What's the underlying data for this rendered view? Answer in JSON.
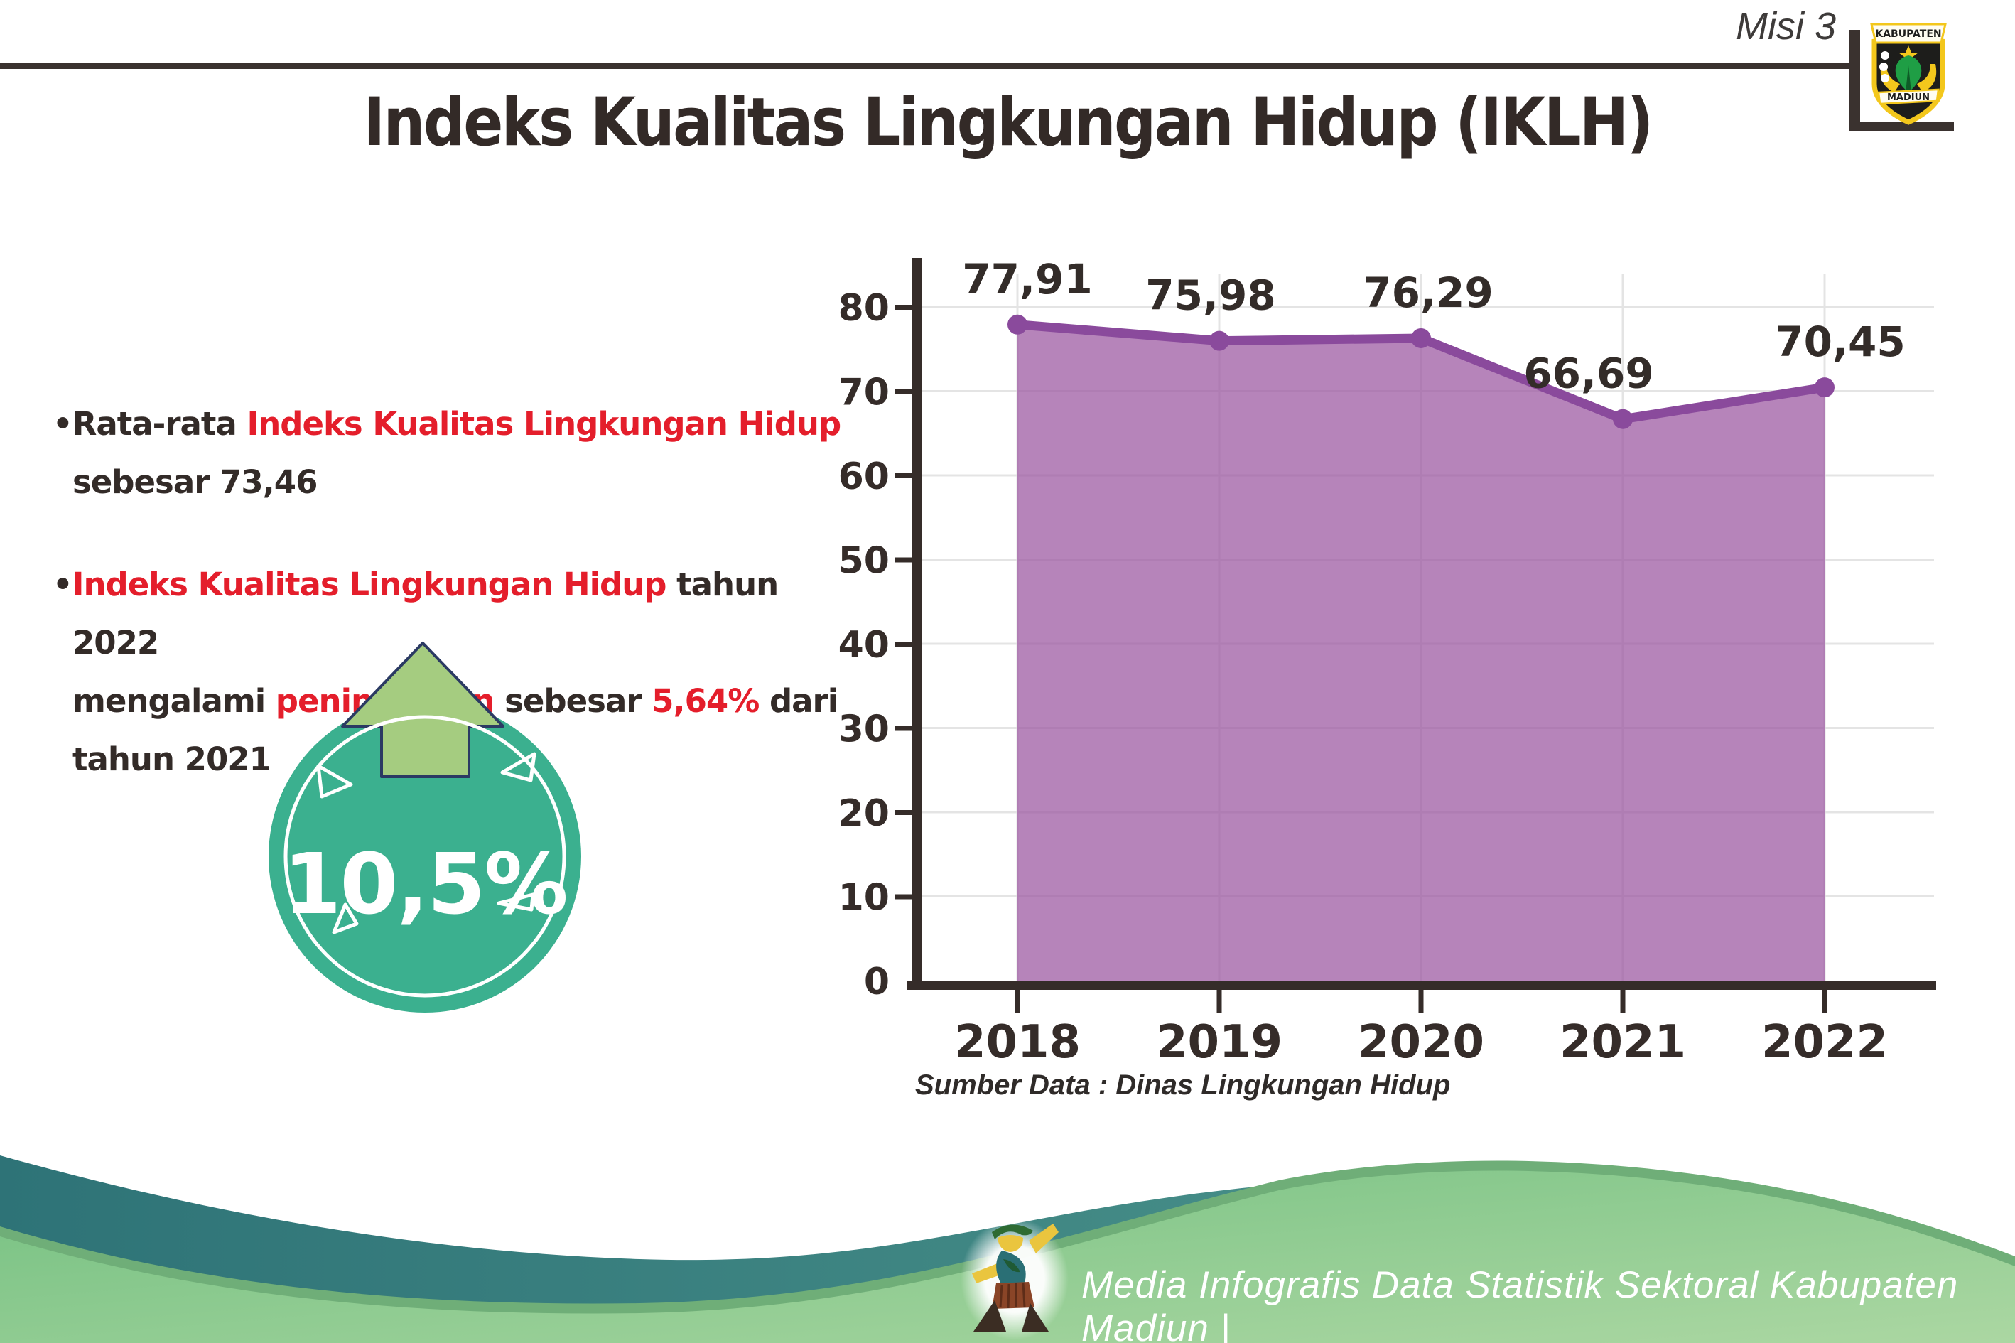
{
  "header": {
    "misi_label": "Misi 3",
    "logo": {
      "icon": "kabupaten-madiun-logo",
      "top_text": "KABUPATEN",
      "bottom_text": "MADIUN"
    }
  },
  "title": "Indeks Kualitas Lingkungan Hidup (IKLH)",
  "bullets": {
    "b1": {
      "bullet": "•",
      "lead": "Rata-rata ",
      "highlight": "Indeks Kualitas Lingkungan Hidup",
      "line2": "sebesar 73,46"
    },
    "b2": {
      "bullet": "•",
      "s1": "Indeks Kualitas Lingkungan Hidup",
      "s2": " tahun 2022",
      "s3": "mengalami ",
      "s4": "peningkatan",
      "s5": " sebesar ",
      "s6": "5,64%",
      "s7": " dari",
      "s8": "tahun 2021"
    }
  },
  "badge": {
    "value": "10,5%",
    "icon": "up-arrow-icon",
    "circle_color": "#3bb08f",
    "arrow_color": "#a5cc80",
    "arrow_outline": "#2b3a63"
  },
  "chart_data": {
    "type": "area",
    "categories": [
      "2018",
      "2019",
      "2020",
      "2021",
      "2022"
    ],
    "values": [
      77.91,
      75.98,
      76.29,
      66.69,
      70.45
    ],
    "value_labels": [
      "77,91",
      "75,98",
      "76,29",
      "66,69",
      "70,45"
    ],
    "label_dx": [
      14,
      -12,
      10,
      -48,
      22
    ],
    "title": "",
    "xlabel": "",
    "ylabel": "",
    "ylim": [
      0,
      80
    ],
    "ytick_step": 10,
    "grid": true,
    "legend": "none",
    "line_color": "#8a4a9c",
    "fill_color": "rgba(154,84,160,0.72)",
    "axis_color": "#352c29",
    "grid_color": "#e4e4e4",
    "label_color": "#332c29"
  },
  "source_note": "Sumber Data : Dinas Lingkungan Hidup",
  "footer": {
    "caption": "Media Infografis Data Statistik Sektoral Kabupaten Madiun |",
    "mascot_icon": "dancing-person-mascot-icon",
    "teal_left": "#2e7377",
    "teal_right": "#529b90",
    "green_light": "#74c081",
    "green_lighter": "#abd7a2",
    "green_edge": "#6fae78"
  },
  "colors": {
    "red_accent": "#e41e2b",
    "dark_text": "#332b28",
    "rule": "#3a322f"
  }
}
